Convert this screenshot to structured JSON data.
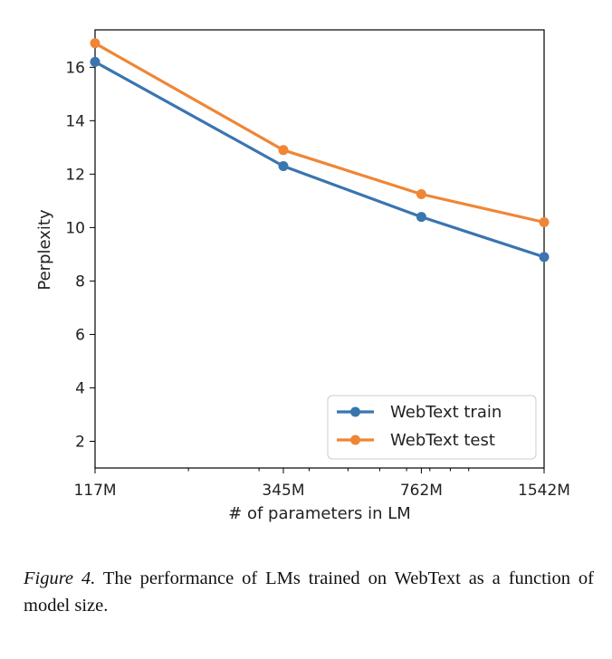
{
  "chart_data": {
    "type": "line",
    "x_scale": "log",
    "x": [
      117,
      345,
      762,
      1542
    ],
    "x_tick_labels": [
      "117M",
      "345M",
      "762M",
      "1542M"
    ],
    "xlim": [
      117,
      1542
    ],
    "ylim": [
      1,
      17.4
    ],
    "y_ticks": [
      2,
      4,
      6,
      8,
      10,
      12,
      14,
      16
    ],
    "xlabel": "# of parameters in LM",
    "ylabel": "Perplexity",
    "grid": false,
    "legend_position": "lower-right",
    "series": [
      {
        "name": "WebText train",
        "color": "#3a75af",
        "values": [
          16.2,
          12.3,
          10.4,
          8.9
        ]
      },
      {
        "name": "WebText test",
        "color": "#ef8636",
        "values": [
          16.9,
          12.9,
          11.25,
          10.2
        ]
      }
    ]
  },
  "caption": {
    "label": "Figure 4.",
    "text": "The performance of LMs trained on WebText as a function of model size."
  }
}
